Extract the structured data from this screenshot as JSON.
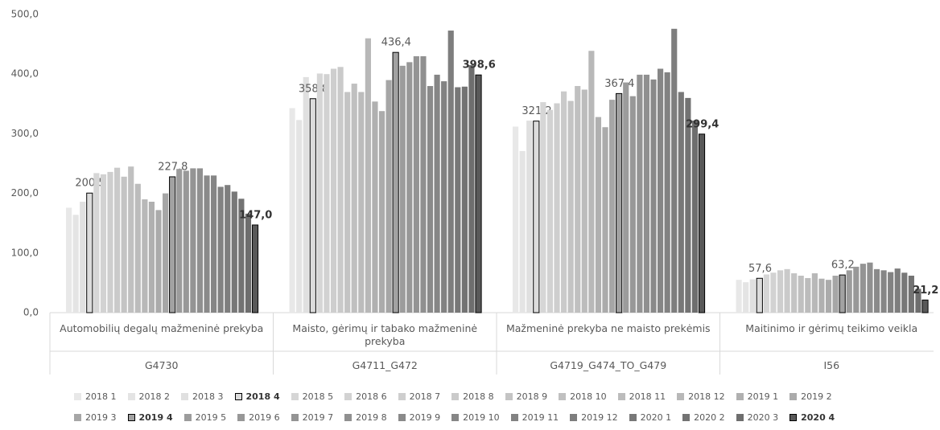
{
  "chart_data": {
    "type": "bar",
    "categories": [
      "Automobilių degalų mažmeninė prekyba",
      "Maisto, gėrimų ir tabako mažmeninė prekyba",
      "Mažmeninė prekyba ne maisto prekėmis",
      "Maitinimo ir gėrimų teikimo veikla"
    ],
    "category_groups": [
      "G4730",
      "G4711_G472",
      "G4719_G474_TO_G479",
      "I56"
    ],
    "ylim": [
      0,
      500
    ],
    "yticks": [
      {
        "value": 0,
        "label": "0,0"
      },
      {
        "value": 100,
        "label": "100,0"
      },
      {
        "value": 200,
        "label": "200,0"
      },
      {
        "value": 300,
        "label": "300,0"
      },
      {
        "value": 400,
        "label": "400,0"
      },
      {
        "value": 500,
        "label": "500,0"
      }
    ],
    "grid": false,
    "legend": "bottom",
    "series": [
      {
        "name": "2018 1",
        "color": "#e8e8e8",
        "values": [
          176,
          343,
          312,
          55
        ]
      },
      {
        "name": "2018 2",
        "color": "#e4e4e4",
        "values": [
          164,
          323,
          271,
          51
        ]
      },
      {
        "name": "2018 3",
        "color": "#e0e0e0",
        "values": [
          186,
          395,
          322,
          56
        ]
      },
      {
        "name": "2018 4",
        "color": "#dcdcdc",
        "bold": true,
        "values": [
          200.5,
          358.8,
          321.2,
          57.6
        ],
        "value_labels": [
          "200,5",
          "358,8",
          "321,2",
          "57,6"
        ]
      },
      {
        "name": "2018 5",
        "color": "#d6d6d6",
        "values": [
          234,
          401,
          353,
          64
        ]
      },
      {
        "name": "2018 6",
        "color": "#d2d2d2",
        "values": [
          232,
          400,
          340,
          67
        ]
      },
      {
        "name": "2018 7",
        "color": "#cecece",
        "values": [
          236,
          409,
          351,
          71
        ]
      },
      {
        "name": "2018 8",
        "color": "#cacaca",
        "values": [
          243,
          412,
          371,
          73
        ]
      },
      {
        "name": "2018 9",
        "color": "#c4c4c4",
        "values": [
          228,
          370,
          355,
          66
        ]
      },
      {
        "name": "2018 10",
        "color": "#c0c0c0",
        "values": [
          245,
          384,
          380,
          62
        ]
      },
      {
        "name": "2018 11",
        "color": "#bcbcbc",
        "values": [
          216,
          370,
          374,
          58
        ]
      },
      {
        "name": "2018 12",
        "color": "#b8b8b8",
        "values": [
          190,
          460,
          439,
          66
        ]
      },
      {
        "name": "2019 1",
        "color": "#b0b0b0",
        "values": [
          186,
          354,
          328,
          57
        ]
      },
      {
        "name": "2019 2",
        "color": "#ababab",
        "values": [
          172,
          338,
          311,
          55
        ]
      },
      {
        "name": "2019 3",
        "color": "#a6a6a6",
        "values": [
          200,
          390,
          357,
          62
        ]
      },
      {
        "name": "2019 4",
        "color": "#a2a2a2",
        "bold": true,
        "values": [
          227.8,
          436.4,
          367.4,
          63.2
        ],
        "value_labels": [
          "227,8",
          "436,4",
          "367,4",
          "63,2"
        ]
      },
      {
        "name": "2019 5",
        "color": "#9c9c9c",
        "values": [
          241,
          414,
          386,
          71
        ]
      },
      {
        "name": "2019 6",
        "color": "#989898",
        "values": [
          238,
          420,
          363,
          77
        ]
      },
      {
        "name": "2019 7",
        "color": "#949494",
        "values": [
          242,
          430,
          399,
          82
        ]
      },
      {
        "name": "2019 8",
        "color": "#909090",
        "values": [
          242,
          430,
          399,
          84
        ]
      },
      {
        "name": "2019 9",
        "color": "#8a8a8a",
        "values": [
          230,
          380,
          391,
          73
        ]
      },
      {
        "name": "2019 10",
        "color": "#868686",
        "values": [
          230,
          399,
          409,
          71
        ]
      },
      {
        "name": "2019 11",
        "color": "#828282",
        "values": [
          211,
          388,
          403,
          68
        ]
      },
      {
        "name": "2019 12",
        "color": "#7e7e7e",
        "values": [
          214,
          473,
          476,
          74
        ]
      },
      {
        "name": "2020 1",
        "color": "#787878",
        "values": [
          203,
          378,
          370,
          67
        ]
      },
      {
        "name": "2020 2",
        "color": "#737373",
        "values": [
          191,
          379,
          360,
          62
        ]
      },
      {
        "name": "2020 3",
        "color": "#6e6e6e",
        "values": [
          166,
          415,
          322,
          40
        ]
      },
      {
        "name": "2020 4",
        "color": "#595959",
        "bold": true,
        "values": [
          147.0,
          398.6,
          299.4,
          21.2
        ],
        "value_labels": [
          "147,0",
          "398,6",
          "299,4",
          "21,2"
        ]
      }
    ]
  }
}
